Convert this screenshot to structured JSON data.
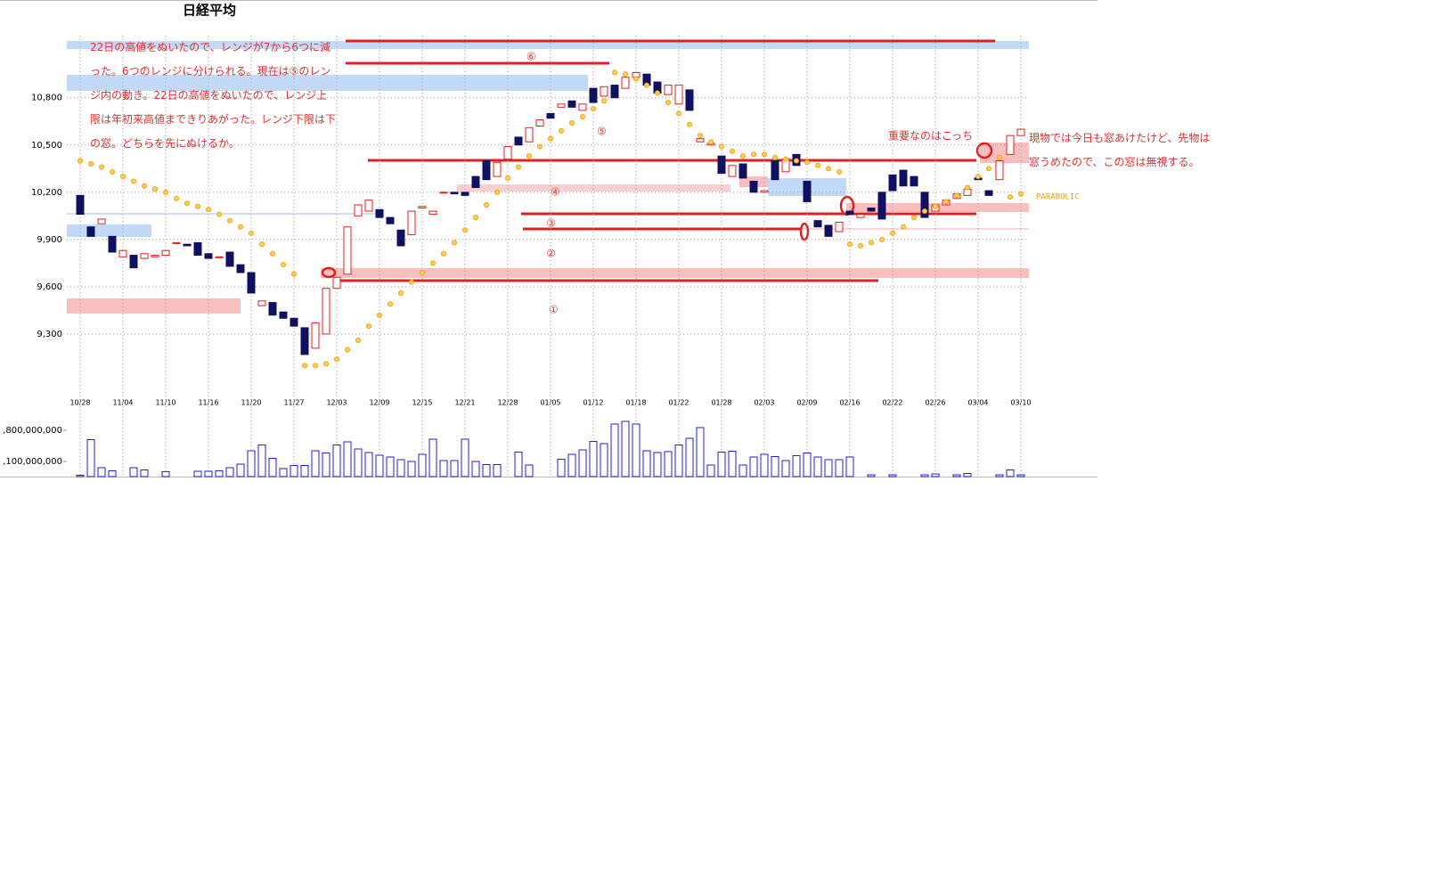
{
  "chart_data": [
    {
      "type": "candlestick",
      "title": "日経平均",
      "categories": [
        "10/28",
        null,
        null,
        null,
        "11/04",
        null,
        null,
        null,
        "11/10",
        null,
        null,
        null,
        "11/16",
        null,
        null,
        null,
        "11/20",
        null,
        null,
        null,
        "11/27",
        null,
        null,
        null,
        "12/03",
        null,
        null,
        null,
        "12/09",
        null,
        null,
        null,
        "12/15",
        null,
        null,
        null,
        "12/21",
        null,
        null,
        null,
        "12/28",
        null,
        null,
        null,
        "01/05",
        null,
        null,
        null,
        "01/12",
        null,
        null,
        null,
        "01/18",
        null,
        null,
        null,
        "01/22",
        null,
        null,
        null,
        "01/28",
        null,
        null,
        null,
        "02/03",
        null,
        null,
        null,
        "02/09",
        null,
        null,
        null,
        "02/16",
        null,
        null,
        null,
        "02/22",
        null,
        null,
        null,
        "02/26",
        null,
        null,
        null,
        "03/04",
        null,
        null,
        null,
        "03/10"
      ],
      "open": [
        10180,
        9980,
        10000,
        9920,
        9790,
        9800,
        9780,
        9790,
        9800,
        9880,
        9870,
        9880,
        9810,
        9790,
        9820,
        9740,
        9690,
        9480,
        9500,
        9440,
        9400,
        9340,
        9210,
        9300,
        9590,
        9680,
        10050,
        10080,
        10090,
        10040,
        9960,
        9930,
        10100,
        10060,
        10200,
        10200,
        10200,
        10300,
        10400,
        10300,
        10410,
        10550,
        10520,
        10620,
        10700,
        10740,
        10780,
        10720,
        10860,
        10810,
        10880,
        10860,
        10930,
        10950,
        10900,
        10820,
        10760,
        10850,
        10520,
        10500,
        10430,
        10300,
        10380,
        10270,
        10200,
        10400,
        10330,
        10440,
        10270,
        10020,
        9990,
        9950,
        10080,
        10040,
        10100,
        10200,
        10310,
        10340,
        10300,
        10200,
        10080,
        10120,
        10160,
        10180,
        10290,
        10210,
        10280,
        10440,
        10560
      ],
      "close": [
        10060,
        9920,
        10030,
        9820,
        9830,
        9720,
        9810,
        9800,
        9830,
        9880,
        9860,
        9800,
        9780,
        9790,
        9730,
        9690,
        9560,
        9510,
        9420,
        9400,
        9350,
        9170,
        9370,
        9590,
        9660,
        9980,
        10120,
        10150,
        10040,
        10000,
        9860,
        10080,
        10110,
        10080,
        10200,
        10190,
        10180,
        10230,
        10280,
        10390,
        10490,
        10500,
        10610,
        10660,
        10670,
        10760,
        10740,
        10760,
        10770,
        10870,
        10800,
        10930,
        10960,
        10880,
        10830,
        10880,
        10880,
        10720,
        10540,
        10510,
        10320,
        10370,
        10290,
        10200,
        10210,
        10280,
        10410,
        10370,
        10140,
        9980,
        9920,
        10010,
        10060,
        10060,
        10080,
        10030,
        10210,
        10240,
        10240,
        10040,
        10120,
        10150,
        10190,
        10220,
        10280,
        10180,
        10400,
        10560,
        10600
      ],
      "overlay": {
        "name": "PARABOLIC",
        "color": "#f5a000",
        "values": [
          10400,
          10380,
          10360,
          10330,
          10300,
          10270,
          10240,
          10220,
          10200,
          10160,
          10130,
          10110,
          10090,
          10060,
          10020,
          9980,
          9940,
          9870,
          9810,
          9740,
          9680,
          9100,
          9100,
          9110,
          9140,
          9200,
          9260,
          9350,
          9420,
          9490,
          9560,
          9630,
          9690,
          9750,
          9810,
          9880,
          9960,
          10040,
          10120,
          10200,
          10290,
          10360,
          10430,
          10490,
          10540,
          10590,
          10640,
          10680,
          10730,
          10780,
          10960,
          10950,
          10920,
          10880,
          10830,
          10770,
          10700,
          10630,
          10560,
          10520,
          10490,
          10460,
          10430,
          10440,
          10440,
          10420,
          10410,
          10400,
          10390,
          10370,
          10350,
          10330,
          9870,
          9860,
          9880,
          9900,
          9940,
          9980,
          10040,
          10080,
          10110,
          10140,
          10180,
          10230,
          10300,
          10350,
          10420,
          10170,
          10190
        ]
      },
      "ylim": [
        9000,
        11200
      ],
      "yticks": [
        {
          "value": 9300,
          "label": "9,300"
        },
        {
          "value": 9600,
          "label": "9,600"
        },
        {
          "value": 9900,
          "label": "9,900"
        },
        {
          "value": 10200,
          "label": "10,200"
        },
        {
          "value": 10500,
          "label": "10,500"
        },
        {
          "value": 10800,
          "label": "10,800"
        }
      ],
      "grid": true,
      "up_color": "#e02020",
      "down_color": "#101060",
      "annotations": [
        "22日の高値をぬいたので、レンジが7から6つに減った。6つのレンジに分けられる。現在は⑤のレンジ内の動き。22日の高値をぬいたので、レンジ上限は年初来高値まできりあがった。レンジ下限は下の窓。どちらを先にぬけるか。",
        "重要なのはこっち",
        "現物では今日も窓あけたけど、先物は窓うめたので、この窓は無視する。",
        "⑥",
        "⑤",
        "④",
        "③",
        "②",
        "①"
      ]
    },
    {
      "type": "bar",
      "color": "#2020e0",
      "values": [
        790000000,
        1590000000,
        960000000,
        890000000,
        null,
        960000000,
        910000000,
        null,
        870000000,
        null,
        null,
        880000000,
        880000000,
        890000000,
        960000000,
        1040000000,
        1340000000,
        1470000000,
        1170000000,
        940000000,
        1010000000,
        1010000000,
        1340000000,
        1290000000,
        1470000000,
        1540000000,
        1380000000,
        1300000000,
        1240000000,
        1200000000,
        1140000000,
        1100000000,
        1260000000,
        1600000000,
        1120000000,
        1120000000,
        1600000000,
        1100000000,
        1030000000,
        1030000000,
        null,
        1310000000,
        1020000000,
        null,
        null,
        1150000000,
        1260000000,
        1360000000,
        1550000000,
        1500000000,
        1940000000,
        2000000000,
        1940000000,
        1340000000,
        1300000000,
        1320000000,
        1470000000,
        1620000000,
        1860000000,
        1020000000,
        1310000000,
        1330000000,
        1020000000,
        1200000000,
        1260000000,
        1210000000,
        1120000000,
        1230000000,
        1290000000,
        1200000000,
        1140000000,
        1140000000,
        1200000000,
        null,
        800000000,
        null,
        800000000,
        null,
        null,
        800000000,
        820000000,
        null,
        800000000,
        830000000,
        null,
        null,
        800000000,
        910000000,
        800000000
      ],
      "ylim": [
        760000000,
        2240000000
      ],
      "yticks": [
        {
          "value": 1100000000,
          "label": ",100,000,000"
        },
        {
          "value": 1800000000,
          "label": ",800,000,000"
        }
      ]
    }
  ]
}
